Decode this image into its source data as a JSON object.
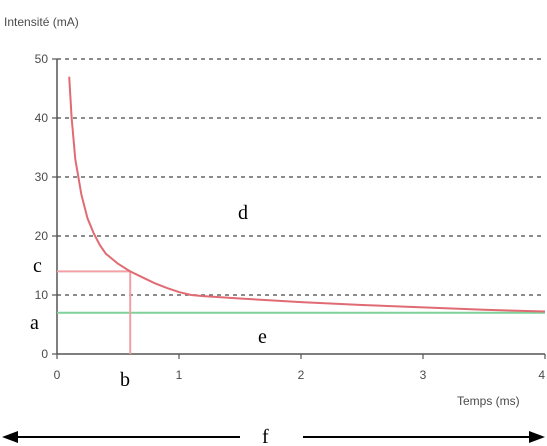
{
  "chart_data": {
    "type": "line",
    "title": "",
    "ylabel": "Intensité (mA)",
    "xlabel": "Temps (ms)",
    "xlim": [
      0,
      4
    ],
    "ylim": [
      0,
      50
    ],
    "x_ticks": [
      "0",
      "1",
      "2",
      "3",
      "4"
    ],
    "y_ticks": [
      "0",
      "10",
      "20",
      "30",
      "40",
      "50"
    ],
    "grid": "horizontal dashed lines at y ticks",
    "series": [
      {
        "color": "#e06b73",
        "x": [
          0.1,
          0.12,
          0.15,
          0.2,
          0.25,
          0.3,
          0.35,
          0.4,
          0.5,
          0.6,
          0.7,
          0.8,
          0.9,
          1.0,
          1.1,
          1.2,
          1.5,
          2.0,
          2.5,
          3.0,
          3.5,
          4.0
        ],
        "y": [
          47,
          40,
          33,
          27,
          23,
          20.5,
          18.5,
          17,
          15.3,
          14,
          13,
          12,
          11.2,
          10.5,
          10,
          9.8,
          9.4,
          8.8,
          8.3,
          7.9,
          7.5,
          7.2
        ]
      }
    ],
    "reference_lines": [
      {
        "axis": "y",
        "value": 7,
        "color": "#7fd19a"
      }
    ],
    "markers": {
      "point": {
        "x": 0.6,
        "y": 14,
        "color": "#f2a0a6"
      }
    },
    "annotations": {
      "a": "a",
      "b": "b",
      "c": "c",
      "d": "d",
      "e": "e",
      "f": "f"
    }
  }
}
